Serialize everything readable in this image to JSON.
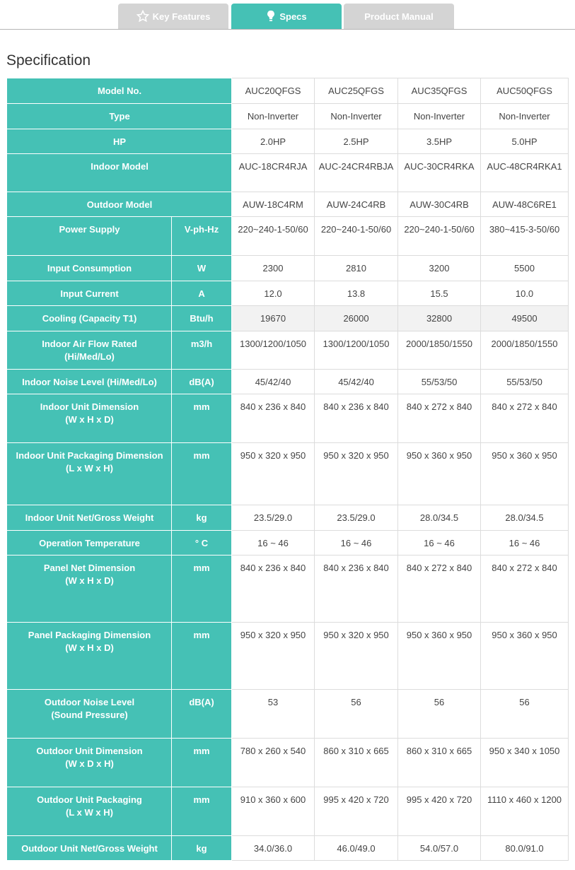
{
  "tabs": [
    "Key Features",
    "Specs",
    "Product Manual"
  ],
  "heading": "Specification",
  "table": {
    "rows": [
      {
        "label": [
          "Model No."
        ],
        "cells": [
          "AUC20QFGS",
          "AUC25QFGS",
          "AUC35QFGS",
          "AUC50QFGS"
        ]
      },
      {
        "label": [
          "Type"
        ],
        "cells": [
          "Non-Inverter",
          "Non-Inverter",
          "Non-Inverter",
          "Non-Inverter"
        ]
      },
      {
        "label": [
          "HP"
        ],
        "cells": [
          "2.0HP",
          "2.5HP",
          "3.5HP",
          "5.0HP"
        ]
      },
      {
        "label": [
          "Indoor Model"
        ],
        "cells": [
          "AUC-18CR4RJA",
          "AUC-24CR4RBJA",
          "AUC-30CR4RKA",
          "AUC-48CR4RKA1"
        ]
      },
      {
        "label": [
          "Outdoor Model"
        ],
        "cells": [
          "AUW-18C4RM",
          "AUW-24C4RB",
          "AUW-30C4RB",
          "AUW-48C6RE1"
        ]
      },
      {
        "label": [
          "Power Supply"
        ],
        "unit": "V-ph-Hz",
        "cells": [
          "220~240-1-50/60",
          "220~240-1-50/60",
          "220~240-1-50/60",
          "380~415-3-50/60"
        ]
      },
      {
        "label": [
          "Input Consumption"
        ],
        "unit": "W",
        "cells": [
          "2300",
          "2810",
          "3200",
          "5500"
        ]
      },
      {
        "label": [
          "Input Current"
        ],
        "unit": "A",
        "cells": [
          "12.0",
          "13.8",
          "15.5",
          "10.0"
        ]
      },
      {
        "label": [
          "Cooling (Capacity T1)"
        ],
        "unit": "Btu/h",
        "cells": [
          "19670",
          "26000",
          "32800",
          "49500"
        ]
      },
      {
        "label": [
          "Indoor Air Flow Rated",
          "(Hi/Med/Lo)"
        ],
        "unit": "m3/h",
        "cells": [
          "1300/1200/1050",
          "1300/1200/1050",
          "2000/1850/1550",
          "2000/1850/1550"
        ]
      },
      {
        "label": [
          "Indoor Noise Level (Hi/Med/Lo)"
        ],
        "unit": "dB(A)",
        "cells": [
          "45/42/40",
          "45/42/40",
          "55/53/50",
          "55/53/50"
        ]
      },
      {
        "label": [
          "Indoor Unit Dimension",
          "(W x H x D)"
        ],
        "unit": "mm",
        "cells": [
          "840 x 236 x 840",
          "840 x 236 x 840",
          "840 x 272 x 840",
          "840 x 272 x 840"
        ]
      },
      {
        "label": [
          "Indoor Unit Packaging Dimension",
          "(L x W x H)"
        ],
        "unit": "mm",
        "cells": [
          "950 x 320 x 950",
          "950 x 320 x 950",
          "950 x 360 x 950",
          "950 x 360 x 950"
        ]
      },
      {
        "label": [
          "Indoor Unit Net/Gross Weight"
        ],
        "unit": "kg",
        "cells": [
          "23.5/29.0",
          "23.5/29.0",
          "28.0/34.5",
          "28.0/34.5"
        ]
      },
      {
        "label": [
          "Operation Temperature"
        ],
        "unit": "° C",
        "cells": [
          "16 ~ 46",
          "16 ~ 46",
          "16 ~ 46",
          "16 ~ 46"
        ]
      },
      {
        "label": [
          "Panel Net Dimension",
          "(W x H x D)"
        ],
        "unit": "mm",
        "cells": [
          "840 x 236 x 840",
          "840 x 236 x 840",
          "840 x 272 x 840",
          "840 x 272 x 840"
        ]
      },
      {
        "label": [
          "Panel Packaging Dimension",
          "(W x H x D)"
        ],
        "unit": "mm",
        "cells": [
          "950 x 320 x 950",
          "950 x 320 x 950",
          "950 x 360 x 950",
          "950 x 360 x 950"
        ]
      },
      {
        "label": [
          "Outdoor Noise Level",
          "(Sound Pressure)"
        ],
        "unit": "dB(A)",
        "cells": [
          "53",
          "56",
          "56",
          "56"
        ]
      },
      {
        "label": [
          "Outdoor Unit Dimension",
          "(W x D x H)"
        ],
        "unit": "mm",
        "cells": [
          "780 x 260 x 540",
          "860 x 310 x 665",
          "860 x 310 x 665",
          "950 x 340 x 1050"
        ]
      },
      {
        "label": [
          "Outdoor Unit Packaging",
          "(L x W x H)"
        ],
        "unit": "mm",
        "cells": [
          "910 x 360 x 600",
          "995 x 420 x 720",
          "995 x 420 x 720",
          "1110 x 460 x 1200"
        ]
      },
      {
        "label": [
          "Outdoor Unit Net/Gross Weight"
        ],
        "unit": "kg",
        "cells": [
          "34.0/36.0",
          "46.0/49.0",
          "54.0/57.0",
          "80.0/91.0"
        ]
      }
    ]
  }
}
